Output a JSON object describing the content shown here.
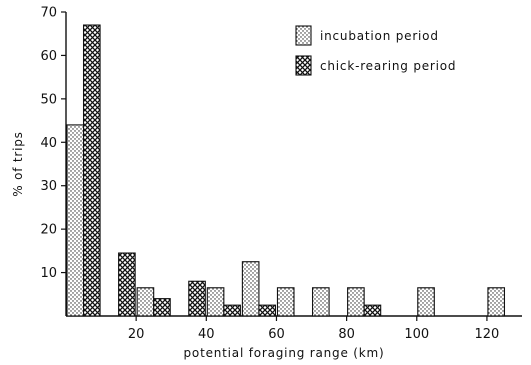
{
  "chart_data": {
    "type": "bar",
    "xlabel": "potential foraging range (km)",
    "ylabel": "% of trips",
    "title": "",
    "ylim": [
      0,
      70
    ],
    "xlim": [
      0,
      130
    ],
    "y_ticks": [
      10,
      20,
      30,
      40,
      50,
      60,
      70
    ],
    "x_ticks": [
      20,
      40,
      60,
      80,
      100,
      120
    ],
    "bin_width": 10,
    "bin_centers": [
      5,
      15,
      25,
      35,
      45,
      55,
      65,
      75,
      85,
      95,
      105,
      115,
      125
    ],
    "legend_position": "top-right",
    "series": [
      {
        "name": "incubation period",
        "pattern": "dotted",
        "values": [
          44,
          0,
          6.5,
          0,
          6.5,
          12.5,
          6.5,
          6.5,
          6.5,
          0,
          6.5,
          0,
          6.5
        ]
      },
      {
        "name": "chick-rearing period",
        "pattern": "crosshatch",
        "values": [
          67,
          14.5,
          4,
          8,
          2.5,
          2.5,
          0,
          0,
          2.5,
          0,
          0,
          0,
          0
        ]
      }
    ]
  }
}
